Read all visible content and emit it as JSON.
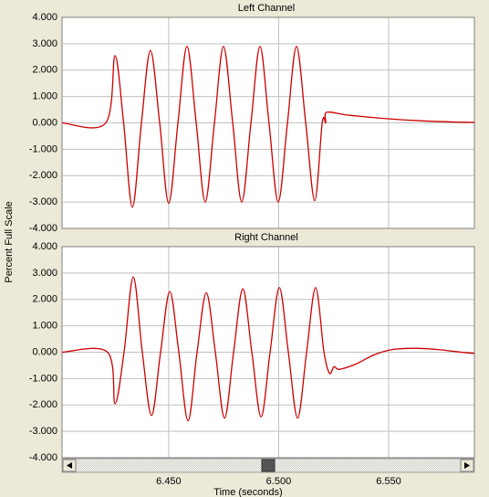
{
  "chart_data": [
    {
      "type": "line",
      "title": "Left Channel",
      "color": "#cc0000",
      "x": [
        6.4015,
        6.4214,
        6.4256,
        6.4295,
        6.4335,
        6.4376,
        6.4417,
        6.4459,
        6.45,
        6.4542,
        6.4583,
        6.4625,
        6.4666,
        6.4708,
        6.4749,
        6.4791,
        6.4832,
        6.4874,
        6.4915,
        6.4956,
        6.4998,
        6.504,
        6.5081,
        6.5123,
        6.5164,
        6.5198,
        6.5214,
        6.5218,
        6.531,
        6.5476,
        6.5642,
        6.5808,
        6.5891
      ],
      "values": [
        0,
        0,
        2.55,
        0,
        -3.2,
        0,
        2.75,
        0,
        -3.05,
        0,
        2.9,
        0,
        -3.0,
        0,
        2.9,
        0,
        -3.0,
        0,
        2.9,
        0,
        -3.0,
        0,
        2.9,
        0,
        -2.95,
        0,
        0,
        0.4,
        0.3,
        0.17,
        0.08,
        0.03,
        0.02
      ],
      "xlim": [
        6.4015,
        6.589
      ],
      "xticks": [
        6.45,
        6.5,
        6.55
      ],
      "xtick_labels": false,
      "ylim": [
        -4,
        4
      ],
      "yticks": [
        {
          "value": -4,
          "label": "-4.000"
        },
        {
          "value": -3,
          "label": "-3.000"
        },
        {
          "value": -2,
          "label": "-2.000"
        },
        {
          "value": -1,
          "label": "-1.000"
        },
        {
          "value": 0,
          "label": "0.000"
        },
        {
          "value": 1,
          "label": "1.000"
        },
        {
          "value": 2,
          "label": "2.000"
        },
        {
          "value": 3,
          "label": "3.000"
        },
        {
          "value": 4,
          "label": "4.000"
        }
      ],
      "grid": true,
      "ylabel": "Percent Full Scale"
    },
    {
      "type": "line",
      "title": "Right Channel",
      "color": "#cc0000",
      "x": [
        6.4015,
        6.4222,
        6.4256,
        6.4297,
        6.4339,
        6.438,
        6.4422,
        6.4463,
        6.4505,
        6.4546,
        6.4588,
        6.4629,
        6.4671,
        6.4712,
        6.4754,
        6.4795,
        6.4837,
        6.4878,
        6.492,
        6.4961,
        6.5003,
        6.5044,
        6.5086,
        6.5127,
        6.5168,
        6.5206,
        6.5231,
        6.5252,
        6.5276,
        6.5351,
        6.5434,
        6.5517,
        6.5621,
        6.5725,
        6.5828,
        6.5891
      ],
      "values": [
        0,
        0,
        -1.95,
        0,
        2.85,
        0,
        -2.4,
        0,
        2.3,
        0,
        -2.6,
        0,
        2.25,
        0,
        -2.5,
        0,
        2.4,
        0,
        -2.45,
        0,
        2.45,
        0,
        -2.5,
        0,
        2.45,
        0,
        -0.8,
        -0.55,
        -0.65,
        -0.45,
        -0.1,
        0.1,
        0.15,
        0.1,
        0,
        -0.05
      ],
      "xlim": [
        6.4015,
        6.589
      ],
      "xticks": [
        {
          "value": 6.45,
          "label": "6.450"
        },
        {
          "value": 6.5,
          "label": "6.500"
        },
        {
          "value": 6.55,
          "label": "6.550"
        }
      ],
      "xtick_labels": true,
      "ylim": [
        -4,
        4
      ],
      "yticks": [
        {
          "value": -4,
          "label": "-4.000"
        },
        {
          "value": -3,
          "label": "-3.000"
        },
        {
          "value": -2,
          "label": "-2.000"
        },
        {
          "value": -1,
          "label": "-1.000"
        },
        {
          "value": 0,
          "label": "0.000"
        },
        {
          "value": 1,
          "label": "1.000"
        },
        {
          "value": 2,
          "label": "2.000"
        },
        {
          "value": 3,
          "label": "3.000"
        },
        {
          "value": 4,
          "label": "4.000"
        }
      ],
      "grid": true,
      "xlabel": "Time (seconds)"
    }
  ]
}
